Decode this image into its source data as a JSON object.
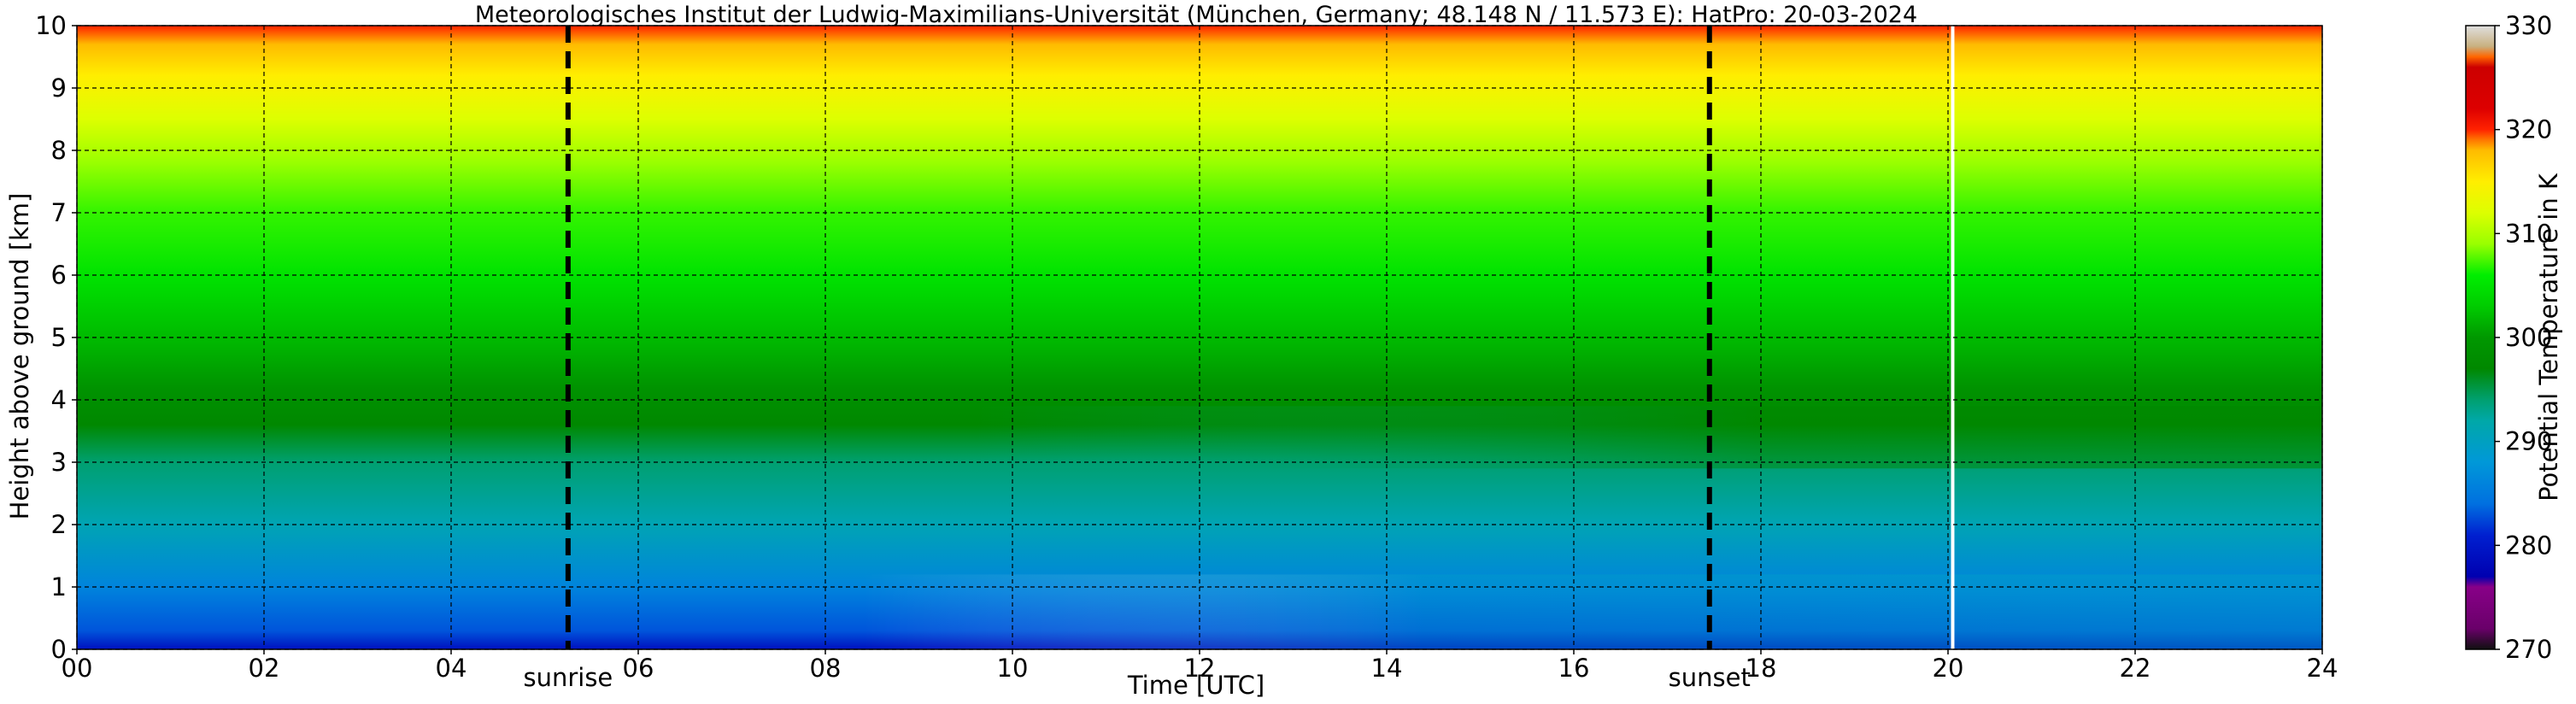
{
  "chart_data": {
    "type": "heatmap",
    "title": "Meteorologisches Institut der Ludwig-Maximilians-Universität (München, Germany; 48.148 N / 11.573 E):    HatPro: 20-03-2024",
    "xlabel": "Time [UTC]",
    "ylabel": "Height above ground [km]",
    "xlim": [
      0,
      24
    ],
    "ylim": [
      0,
      10
    ],
    "x_ticks": [
      "00",
      "02",
      "04",
      "06",
      "08",
      "10",
      "12",
      "14",
      "16",
      "18",
      "20",
      "22",
      "24"
    ],
    "y_ticks": [
      "0",
      "1",
      "2",
      "3",
      "4",
      "5",
      "6",
      "7",
      "8",
      "9",
      "10"
    ],
    "grid": true,
    "colorbar": {
      "label": "Potential Temperature in K",
      "range": [
        270,
        330
      ],
      "ticks": [
        "270",
        "280",
        "290",
        "300",
        "310",
        "320",
        "330"
      ],
      "colors": [
        {
          "value": 270,
          "color": "#101010"
        },
        {
          "value": 272,
          "color": "#6a006a"
        },
        {
          "value": 276,
          "color": "#880088"
        },
        {
          "value": 277,
          "color": "#0000b0"
        },
        {
          "value": 281,
          "color": "#0020d0"
        },
        {
          "value": 284,
          "color": "#0070e0"
        },
        {
          "value": 288,
          "color": "#0098d8"
        },
        {
          "value": 292,
          "color": "#00a8a8"
        },
        {
          "value": 294,
          "color": "#00a070"
        },
        {
          "value": 297,
          "color": "#008800"
        },
        {
          "value": 300,
          "color": "#009800"
        },
        {
          "value": 303,
          "color": "#00cc00"
        },
        {
          "value": 306,
          "color": "#00ee00"
        },
        {
          "value": 309,
          "color": "#99ff00"
        },
        {
          "value": 312,
          "color": "#ddff00"
        },
        {
          "value": 315,
          "color": "#ffee00"
        },
        {
          "value": 318,
          "color": "#ffbb00"
        },
        {
          "value": 319,
          "color": "#ff7700"
        },
        {
          "value": 320,
          "color": "#ff2200"
        },
        {
          "value": 322,
          "color": "#dd0000"
        },
        {
          "value": 326,
          "color": "#cc0000"
        },
        {
          "value": 327,
          "color": "#ff6600"
        },
        {
          "value": 328,
          "color": "#c8b080"
        },
        {
          "value": 330,
          "color": "#e0e0e0"
        }
      ]
    },
    "profile": [
      {
        "height_km": 0.0,
        "theta_K": 279
      },
      {
        "height_km": 0.3,
        "theta_K": 283
      },
      {
        "height_km": 1.0,
        "theta_K": 286
      },
      {
        "height_km": 2.0,
        "theta_K": 291
      },
      {
        "height_km": 3.0,
        "theta_K": 294
      },
      {
        "height_km": 3.6,
        "theta_K": 297
      },
      {
        "height_km": 4.2,
        "theta_K": 299
      },
      {
        "height_km": 5.0,
        "theta_K": 302
      },
      {
        "height_km": 6.0,
        "theta_K": 305
      },
      {
        "height_km": 7.0,
        "theta_K": 307
      },
      {
        "height_km": 7.8,
        "theta_K": 309
      },
      {
        "height_km": 8.5,
        "theta_K": 312
      },
      {
        "height_km": 9.2,
        "theta_K": 315
      },
      {
        "height_km": 9.7,
        "theta_K": 318
      },
      {
        "height_km": 10.0,
        "theta_K": 320
      }
    ],
    "markers": [
      {
        "label": "sunrise",
        "time_utc": 5.25
      },
      {
        "label": "sunset",
        "time_utc": 17.45
      }
    ],
    "data_gap_utc": 20.05
  }
}
